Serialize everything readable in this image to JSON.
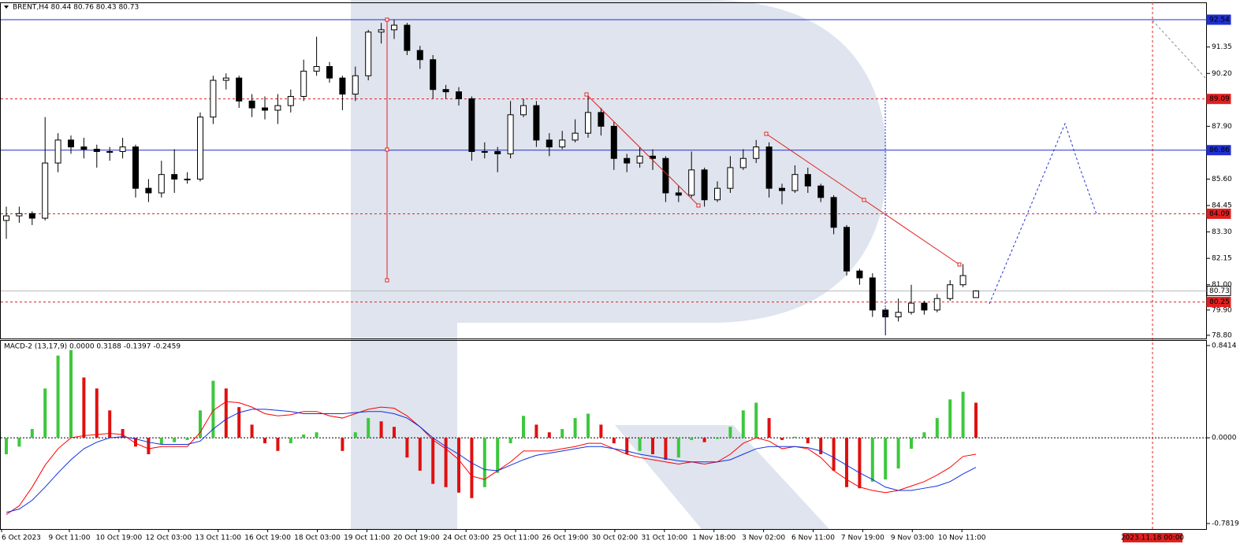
{
  "chart_data": [
    {
      "type": "candlestick",
      "title": "BRENT,H4  80.44 80.76 80.43 80.73",
      "up_color": "#ffffff",
      "down_color": "#000000",
      "open": [
        83.8,
        84.0,
        84.1,
        83.9,
        86.3,
        87.3,
        87.0,
        86.9,
        86.8,
        86.8,
        87.0,
        85.2,
        85.0,
        85.8,
        85.6,
        85.6,
        88.3,
        89.9,
        90.0,
        89.0,
        88.7,
        88.6,
        88.8,
        89.2,
        90.3,
        90.5,
        90.0,
        89.3,
        90.1,
        92.0,
        92.1,
        92.3,
        91.2,
        90.8,
        89.5,
        89.4,
        89.1,
        86.8,
        86.8,
        86.7,
        88.4,
        88.8,
        87.3,
        87.0,
        87.3,
        87.6,
        88.5,
        87.9,
        86.5,
        86.3,
        86.6,
        86.5,
        85.0,
        84.9,
        86.0,
        84.7,
        85.2,
        86.1,
        86.5,
        87.0,
        85.2,
        85.1,
        85.8,
        85.3,
        84.8,
        83.5,
        81.6,
        81.3,
        79.9,
        79.6,
        79.8,
        80.2,
        79.9,
        80.4,
        81.0,
        80.44
      ],
      "high": [
        84.4,
        84.4,
        84.2,
        88.3,
        87.6,
        87.5,
        87.4,
        87.1,
        87.0,
        87.4,
        87.1,
        85.6,
        86.4,
        86.9,
        85.9,
        88.5,
        90.1,
        90.2,
        90.1,
        89.3,
        89.2,
        89.3,
        89.5,
        90.8,
        91.8,
        90.7,
        90.1,
        90.5,
        92.1,
        92.4,
        92.54,
        92.4,
        91.4,
        91.0,
        89.7,
        89.6,
        89.2,
        87.2,
        87.0,
        89.0,
        89.1,
        89.0,
        87.6,
        87.7,
        88.2,
        89.2,
        88.7,
        88.1,
        86.7,
        87.0,
        86.9,
        86.6,
        85.3,
        86.8,
        86.1,
        85.5,
        86.6,
        86.9,
        87.3,
        87.2,
        85.4,
        86.2,
        86.1,
        85.4,
        84.9,
        83.6,
        81.7,
        81.5,
        80.0,
        80.4,
        81.0,
        80.3,
        80.6,
        81.2,
        81.9,
        80.76
      ],
      "low": [
        83.0,
        83.7,
        83.6,
        83.8,
        85.9,
        86.7,
        86.5,
        86.1,
        86.4,
        86.5,
        84.8,
        84.6,
        84.8,
        85.0,
        85.4,
        85.5,
        88.0,
        89.5,
        88.7,
        88.3,
        88.2,
        88.0,
        88.5,
        89.0,
        90.1,
        89.8,
        88.6,
        89.0,
        89.9,
        91.5,
        91.7,
        91.0,
        90.4,
        89.1,
        89.1,
        88.8,
        86.4,
        86.5,
        85.9,
        86.5,
        88.3,
        87.0,
        86.6,
        86.9,
        87.2,
        87.4,
        87.5,
        86.0,
        85.9,
        86.1,
        86.0,
        84.6,
        84.6,
        84.8,
        84.4,
        84.6,
        85.0,
        86.0,
        86.3,
        84.8,
        84.5,
        85.0,
        85.0,
        84.6,
        83.2,
        81.4,
        81.0,
        79.6,
        78.8,
        79.4,
        79.7,
        79.7,
        79.8,
        80.3,
        80.9,
        80.43
      ],
      "close": [
        84.0,
        84.1,
        83.9,
        86.3,
        87.3,
        87.0,
        86.9,
        86.8,
        86.8,
        87.0,
        85.2,
        85.0,
        85.8,
        85.6,
        85.6,
        88.3,
        89.9,
        90.0,
        89.0,
        88.7,
        88.6,
        88.8,
        89.2,
        90.3,
        90.5,
        90.0,
        89.3,
        90.1,
        92.0,
        92.1,
        92.3,
        91.2,
        90.8,
        89.5,
        89.4,
        89.1,
        86.8,
        86.8,
        86.7,
        88.4,
        88.8,
        87.3,
        87.0,
        87.3,
        87.6,
        88.5,
        87.9,
        86.5,
        86.3,
        86.6,
        86.5,
        85.0,
        84.9,
        86.0,
        84.7,
        85.2,
        86.1,
        86.5,
        87.0,
        85.2,
        85.1,
        85.8,
        85.3,
        84.8,
        83.5,
        81.6,
        81.3,
        79.9,
        79.6,
        79.8,
        80.2,
        79.9,
        80.4,
        81.0,
        81.4,
        80.73
      ],
      "ylim": [
        78.66,
        93.26
      ],
      "yticks": [
        91.35,
        {
          "value": 90.2,
          "label": "90.20"
        },
        {
          "value": 87.9,
          "label": "87.90"
        },
        {
          "value": 85.6,
          "label": "85.60"
        },
        84.45,
        {
          "value": 83.3,
          "label": "83.30"
        },
        82.15,
        {
          "value": 81,
          "label": "81.00"
        },
        {
          "value": 79.9,
          "label": "79.90"
        },
        {
          "value": 78.8,
          "label": "78.80"
        }
      ],
      "levels": [
        {
          "value": 92.54,
          "color": "#1f2fd0",
          "dashed": false,
          "label_bg": "#1f2fd0",
          "label_color": "#ffffff"
        },
        {
          "value": 89.09,
          "color": "#e02020",
          "dashed": true,
          "label_bg": "#e02020",
          "label_color": "#ffffff"
        },
        {
          "value": 86.86,
          "color": "#1f2fd0",
          "dashed": false,
          "label_bg": "#1f2fd0",
          "label_color": "#ffffff"
        },
        {
          "value": 84.09,
          "color": "#e02020",
          "dashed": true,
          "label_bg": "#e02020",
          "label_color": "#ffffff"
        },
        {
          "value": 80.73,
          "color": "#b8b8b8",
          "dashed": false,
          "label_bg": "#ffffff",
          "label_color": "#000000"
        },
        {
          "value": 80.25,
          "color": "#e02020",
          "dashed": true,
          "label_bg": "#e02020",
          "label_color": "#ffffff"
        }
      ]
    },
    {
      "type": "macd",
      "title": "MACD-2 (13,17,9) 0.0000 0.3188 -0.1397 -0.2459",
      "histogram": {
        "up_color": "#3cc83c",
        "down_color": "#e01010",
        "values": [
          -0.15,
          -0.08,
          0.08,
          0.45,
          0.75,
          0.8,
          0.55,
          0.45,
          0.25,
          0.08,
          -0.08,
          -0.15,
          -0.06,
          -0.04,
          -0.02,
          0.25,
          0.52,
          0.45,
          0.28,
          0.12,
          -0.05,
          -0.12,
          -0.05,
          0.03,
          0.05,
          0.0,
          -0.12,
          0.05,
          0.18,
          0.15,
          0.1,
          -0.18,
          -0.3,
          -0.42,
          -0.45,
          -0.5,
          -0.55,
          -0.45,
          -0.32,
          -0.05,
          0.2,
          0.12,
          0.05,
          0.08,
          0.18,
          0.22,
          0.12,
          -0.05,
          -0.15,
          -0.12,
          -0.15,
          -0.2,
          -0.18,
          -0.02,
          -0.04,
          -0.01,
          0.1,
          0.25,
          0.32,
          0.18,
          -0.02,
          0.01,
          -0.05,
          -0.15,
          -0.3,
          -0.45,
          -0.46,
          -0.4,
          -0.38,
          -0.28,
          -0.1,
          0.05,
          0.18,
          0.35,
          0.42,
          0.32
        ]
      },
      "lines": [
        {
          "color": "#ff0000",
          "values": [
            -0.7,
            -0.62,
            -0.45,
            -0.25,
            -0.1,
            0.0,
            0.02,
            0.03,
            0.04,
            0.03,
            -0.05,
            -0.1,
            -0.08,
            -0.08,
            -0.08,
            0.05,
            0.25,
            0.33,
            0.32,
            0.28,
            0.22,
            0.2,
            0.21,
            0.24,
            0.24,
            0.2,
            0.18,
            0.22,
            0.26,
            0.28,
            0.27,
            0.2,
            0.1,
            -0.02,
            -0.1,
            -0.2,
            -0.35,
            -0.38,
            -0.3,
            -0.22,
            -0.12,
            -0.12,
            -0.12,
            -0.1,
            -0.08,
            -0.05,
            -0.05,
            -0.1,
            -0.15,
            -0.18,
            -0.2,
            -0.22,
            -0.24,
            -0.22,
            -0.24,
            -0.22,
            -0.15,
            -0.05,
            0.0,
            -0.03,
            -0.1,
            -0.08,
            -0.1,
            -0.18,
            -0.3,
            -0.38,
            -0.45,
            -0.48,
            -0.5,
            -0.48,
            -0.44,
            -0.4,
            -0.34,
            -0.27,
            -0.17,
            -0.15
          ]
        },
        {
          "color": "#1030e0",
          "values": [
            -0.68,
            -0.65,
            -0.57,
            -0.45,
            -0.32,
            -0.2,
            -0.1,
            -0.04,
            0.0,
            0.01,
            -0.01,
            -0.04,
            -0.06,
            -0.06,
            -0.06,
            -0.03,
            0.08,
            0.17,
            0.23,
            0.26,
            0.26,
            0.25,
            0.24,
            0.22,
            0.22,
            0.22,
            0.22,
            0.23,
            0.24,
            0.24,
            0.22,
            0.18,
            0.1,
            0.0,
            -0.08,
            -0.15,
            -0.23,
            -0.29,
            -0.3,
            -0.25,
            -0.2,
            -0.16,
            -0.14,
            -0.12,
            -0.1,
            -0.08,
            -0.08,
            -0.1,
            -0.12,
            -0.15,
            -0.17,
            -0.19,
            -0.21,
            -0.22,
            -0.22,
            -0.22,
            -0.2,
            -0.15,
            -0.1,
            -0.08,
            -0.08,
            -0.08,
            -0.09,
            -0.12,
            -0.18,
            -0.25,
            -0.32,
            -0.38,
            -0.45,
            -0.48,
            -0.48,
            -0.46,
            -0.44,
            -0.4,
            -0.33,
            -0.27
          ]
        }
      ],
      "ylim": [
        -0.832,
        0.884
      ],
      "yticks": [
        0.8414,
        {
          "value": 0,
          "label": "0.0000"
        },
        -0.7819
      ],
      "zero_line": true,
      "x_labels": [
        "6 Oct 2023",
        "9 Oct 11:00",
        "10 Oct 19:00",
        "12 Oct 03:00",
        "13 Oct 11:00",
        "16 Oct 19:00",
        "18 Oct 03:00",
        "19 Oct 11:00",
        "20 Oct 19:00",
        "24 Oct 03:00",
        "25 Oct 11:00",
        "26 Oct 19:00",
        "30 Oct 02:00",
        "31 Oct 10:00",
        "1 Nov 18:00",
        "3 Nov 02:00",
        "6 Nov 11:00",
        "7 Nov 19:00",
        "9 Nov 03:00",
        "10 Nov 11:00"
      ],
      "marker_label": "2023.11.18 00:00"
    }
  ]
}
